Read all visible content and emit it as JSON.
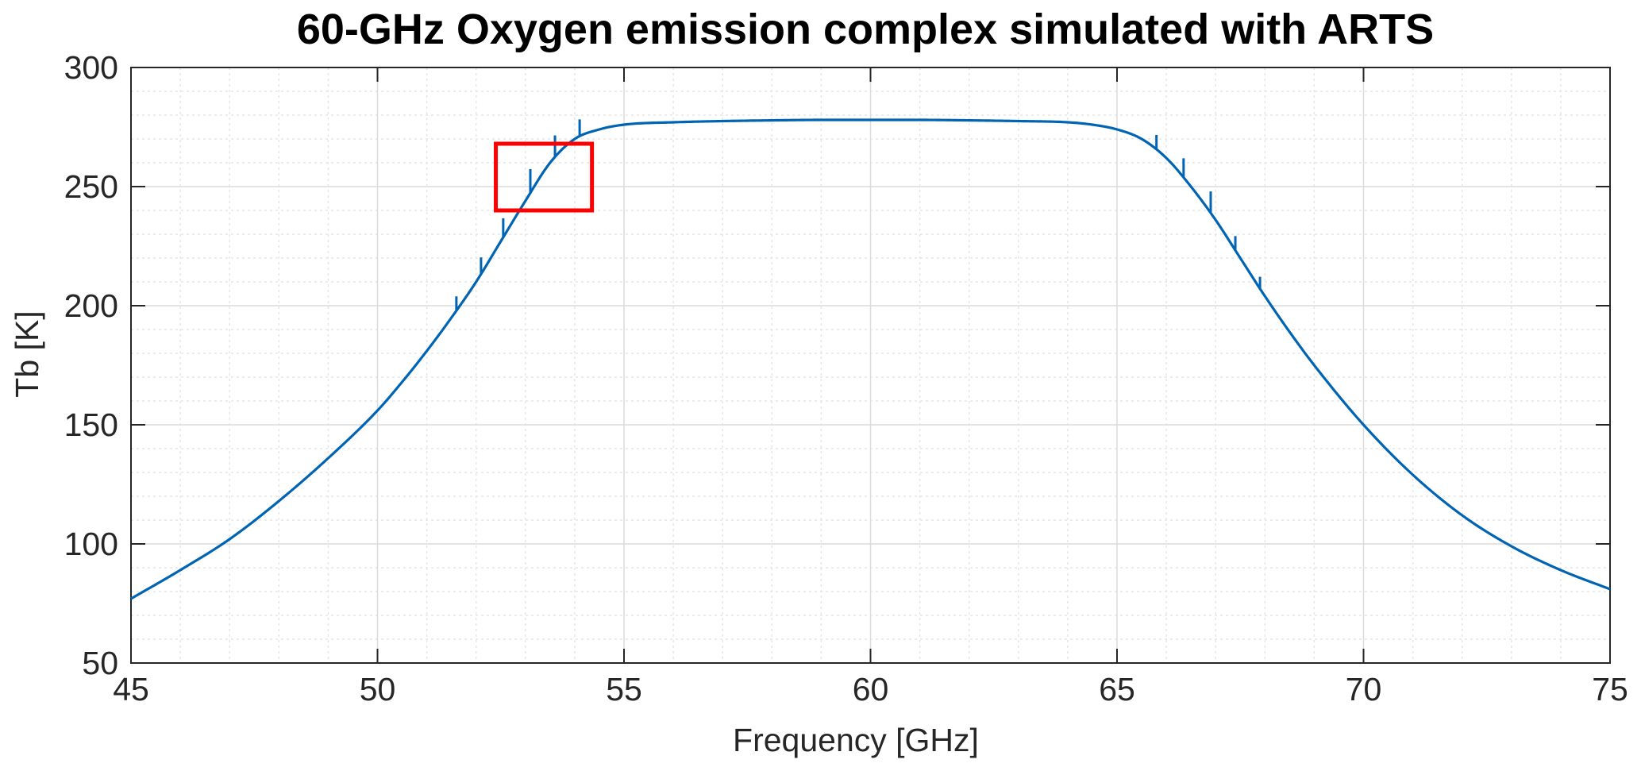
{
  "chart_data": {
    "type": "line",
    "title": "60-GHz Oxygen emission complex simulated with ARTS",
    "xlabel": "Frequency [GHz]",
    "ylabel": "Tb [K]",
    "xlim": [
      45,
      75
    ],
    "ylim": [
      50,
      300
    ],
    "xticks": [
      45,
      50,
      55,
      60,
      65,
      70,
      75
    ],
    "xtick_labels": [
      "45",
      "50",
      "55",
      "60",
      "65",
      "70",
      "75"
    ],
    "yticks": [
      50,
      100,
      150,
      200,
      250,
      300
    ],
    "ytick_labels": [
      "50",
      "100",
      "150",
      "200",
      "250",
      "300"
    ],
    "grid": true,
    "minor_grid": true,
    "box": true,
    "series": [
      {
        "color": "#0064b4",
        "x": [
          45,
          46,
          47,
          48,
          49,
          50,
          50.5,
          51,
          51.5,
          52,
          52.5,
          53,
          53.5,
          54,
          54.5,
          55,
          56,
          57,
          58,
          59,
          60,
          61,
          62,
          63,
          64,
          64.5,
          65,
          65.5,
          66,
          66.5,
          67,
          67.5,
          68,
          68.5,
          69,
          70,
          71,
          72,
          73,
          74,
          75
        ],
        "y": [
          77,
          89,
          102,
          118,
          136,
          156,
          168,
          181,
          195,
          210,
          227,
          244,
          260,
          270,
          274,
          276,
          277,
          277.5,
          277.8,
          278,
          278,
          278,
          277.8,
          277.5,
          277,
          276,
          274,
          270,
          262,
          250,
          236,
          220,
          204,
          189,
          175,
          150,
          129,
          112,
          99,
          89,
          81
        ]
      }
    ],
    "line_spikes": [
      {
        "x": 51.6,
        "dy": 6
      },
      {
        "x": 52.1,
        "dy": 7
      },
      {
        "x": 52.55,
        "dy": 8
      },
      {
        "x": 53.1,
        "dy": 10
      },
      {
        "x": 53.6,
        "dy": 9
      },
      {
        "x": 54.1,
        "dy": 7
      },
      {
        "x": 65.8,
        "dy": 6
      },
      {
        "x": 66.35,
        "dy": 8
      },
      {
        "x": 66.9,
        "dy": 9
      },
      {
        "x": 67.4,
        "dy": 6
      },
      {
        "x": 67.9,
        "dy": 5
      }
    ],
    "annotations": [
      {
        "type": "rectangle",
        "x0": 52.4,
        "x1": 54.35,
        "y0": 240,
        "y1": 268,
        "color": "#ff0000"
      }
    ]
  }
}
